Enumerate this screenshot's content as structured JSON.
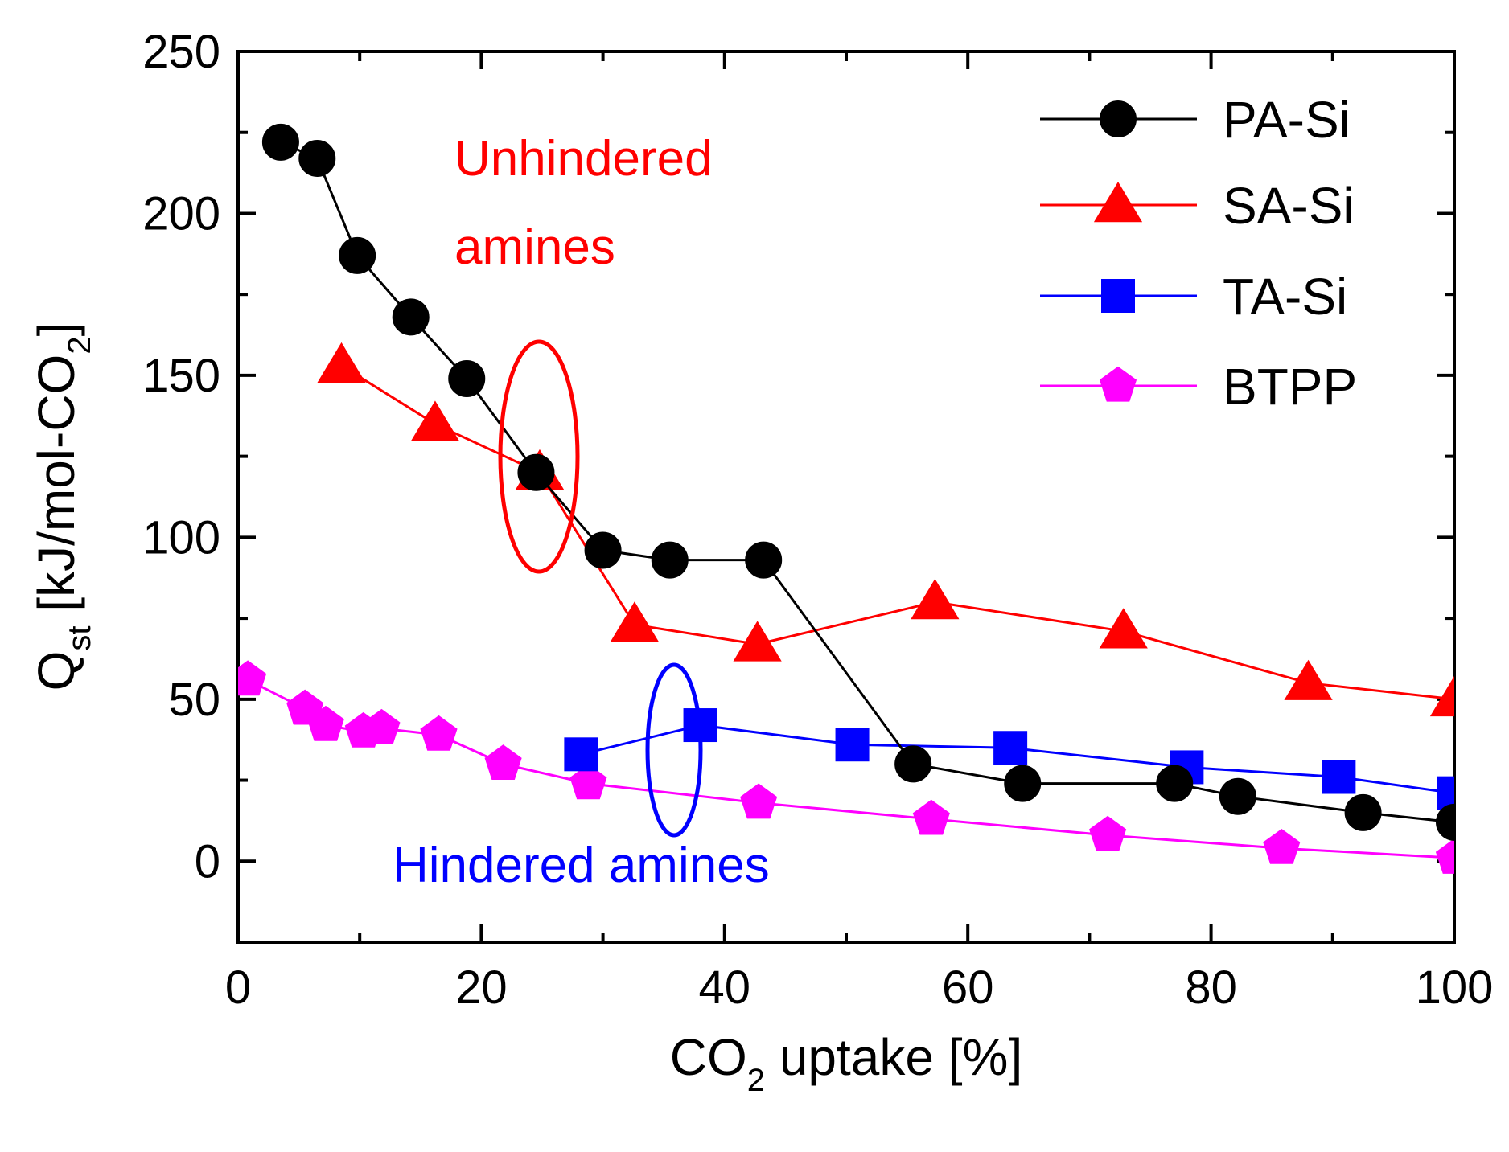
{
  "chart_data": {
    "type": "line",
    "xlabel": {
      "main": "CO",
      "sub": "2",
      "rest": " uptake [%]"
    },
    "ylabel": {
      "main": "Q",
      "sub": "st",
      "rest": " [kJ/mol-CO",
      "sub2": "2",
      "end": "]"
    },
    "xlim": [
      0,
      100
    ],
    "ylim": [
      -25,
      250
    ],
    "xticks": [
      0,
      20,
      40,
      60,
      80,
      100
    ],
    "yticks": [
      0,
      50,
      100,
      150,
      200,
      250
    ],
    "xtick_labels": [
      "0",
      "20",
      "40",
      "60",
      "80",
      "100"
    ],
    "ytick_labels": [
      "0",
      "50",
      "100",
      "150",
      "200",
      "250"
    ],
    "legend_position": "top-right",
    "series": [
      {
        "name": "PA-Si",
        "color": "#000000",
        "marker": "circle",
        "x": [
          3.5,
          6.5,
          9.8,
          14.2,
          18.8,
          24.5,
          30.0,
          35.5,
          43.2,
          55.5,
          64.5,
          77.0,
          82.2,
          92.5,
          100
        ],
        "y": [
          222,
          217,
          187,
          168,
          149,
          120,
          96,
          93,
          93,
          30,
          24,
          24,
          20,
          15,
          12
        ]
      },
      {
        "name": "SA-Si",
        "color": "#ff0000",
        "marker": "triangle",
        "x": [
          8.5,
          16.2,
          24.8,
          32.6,
          42.7,
          57.3,
          72.8,
          88.0,
          100
        ],
        "y": [
          153,
          135,
          120,
          73,
          67,
          80,
          71,
          55,
          50
        ]
      },
      {
        "name": "TA-Si",
        "color": "#0000ff",
        "marker": "square",
        "x": [
          28.2,
          38.0,
          50.5,
          63.5,
          78.0,
          90.5,
          100
        ],
        "y": [
          33,
          42,
          36,
          35,
          29,
          26,
          21
        ]
      },
      {
        "name": "BTPP",
        "color": "#ff00ff",
        "marker": "pentagon",
        "x": [
          0.8,
          5.5,
          7.2,
          10.3,
          11.8,
          16.5,
          21.8,
          28.8,
          42.8,
          57.0,
          71.5,
          85.8,
          100
        ],
        "y": [
          56,
          47,
          42,
          40,
          41,
          39,
          30,
          24,
          18,
          13,
          8,
          4,
          1
        ]
      }
    ],
    "annotations": [
      {
        "text": "Unhindered",
        "color": "#ff0000"
      },
      {
        "text": "amines",
        "color": "#ff0000"
      },
      {
        "text": "Hindered amines",
        "color": "#0000ff"
      }
    ]
  }
}
